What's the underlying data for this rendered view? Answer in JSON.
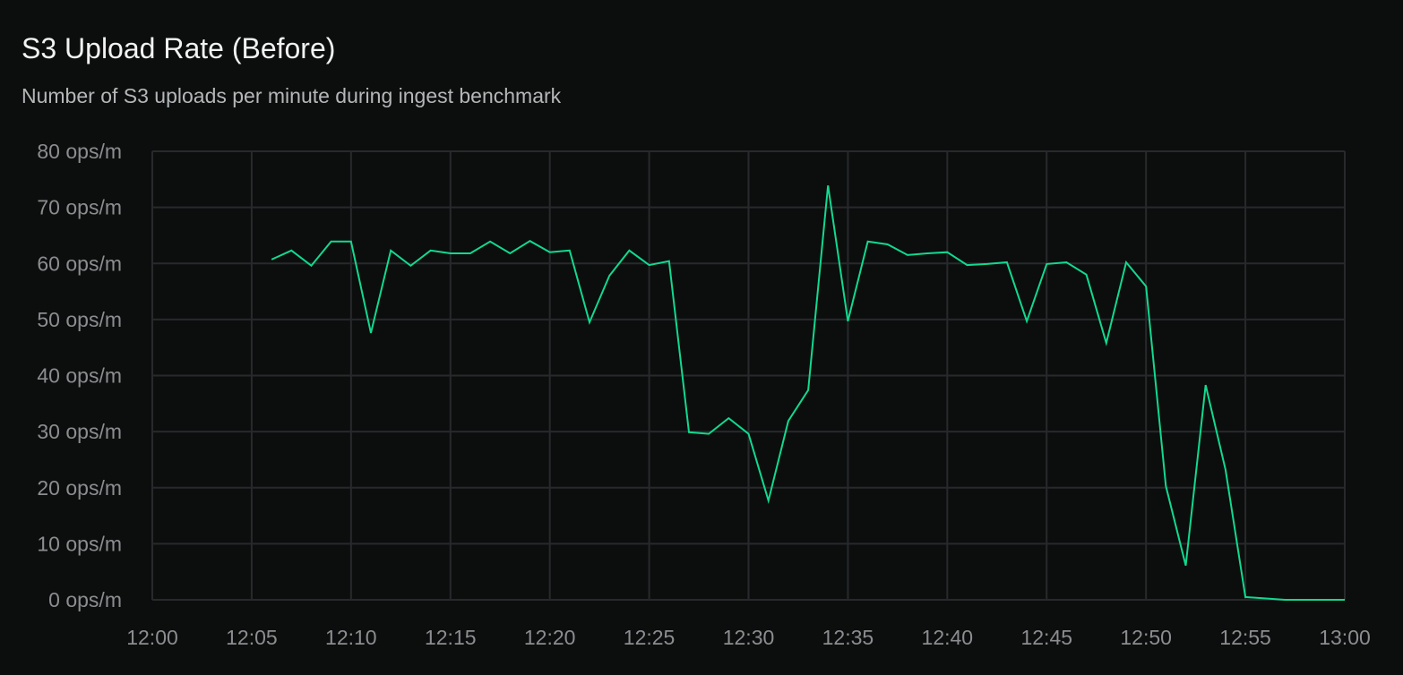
{
  "chart_data": {
    "type": "line",
    "title": "S3 Upload Rate (Before)",
    "subtitle": "Number of S3 uploads per minute during ingest benchmark",
    "xlabel": "",
    "ylabel": "",
    "x_ticks": [
      "12:00",
      "12:05",
      "12:10",
      "12:15",
      "12:20",
      "12:25",
      "12:30",
      "12:35",
      "12:40",
      "12:45",
      "12:50",
      "12:55",
      "13:00"
    ],
    "y_ticks": [
      "0 ops/m",
      "10 ops/m",
      "20 ops/m",
      "30 ops/m",
      "40 ops/m",
      "50 ops/m",
      "60 ops/m",
      "70 ops/m",
      "80 ops/m"
    ],
    "xlim": [
      "12:00",
      "13:00"
    ],
    "ylim": [
      0,
      80
    ],
    "grid": true,
    "line_color": "#12d98f",
    "series": [
      {
        "x": [
          "12:06",
          "12:07",
          "12:08",
          "12:09",
          "12:10",
          "12:11",
          "12:12",
          "12:13",
          "12:14",
          "12:15",
          "12:16",
          "12:17",
          "12:18",
          "12:19",
          "12:20",
          "12:21",
          "12:22",
          "12:23",
          "12:24",
          "12:25",
          "12:26",
          "12:27",
          "12:28",
          "12:29",
          "12:30",
          "12:31",
          "12:32",
          "12:33",
          "12:34",
          "12:35",
          "12:36",
          "12:37",
          "12:38",
          "12:39",
          "12:40",
          "12:41",
          "12:42",
          "12:43",
          "12:44",
          "12:45",
          "12:46",
          "12:47",
          "12:48",
          "12:49",
          "12:50",
          "12:51",
          "12:52",
          "12:53",
          "12:54",
          "12:55",
          "12:57",
          "12:58",
          "12:59",
          "13:00"
        ],
        "values": [
          60.7,
          62.3,
          59.6,
          63.9,
          63.9,
          47.6,
          62.3,
          59.6,
          62.3,
          61.8,
          61.8,
          63.9,
          61.8,
          64.0,
          62.0,
          62.3,
          49.5,
          57.8,
          62.3,
          59.7,
          60.4,
          29.9,
          29.6,
          32.4,
          29.6,
          17.7,
          31.9,
          37.4,
          73.9,
          49.7,
          63.9,
          63.4,
          61.5,
          61.8,
          62.0,
          59.7,
          59.9,
          60.2,
          49.7,
          59.9,
          60.2,
          58.0,
          45.8,
          60.2,
          55.9,
          20.3,
          6.1,
          38.3,
          23.2,
          0.5,
          0,
          0,
          0,
          0
        ]
      }
    ]
  }
}
